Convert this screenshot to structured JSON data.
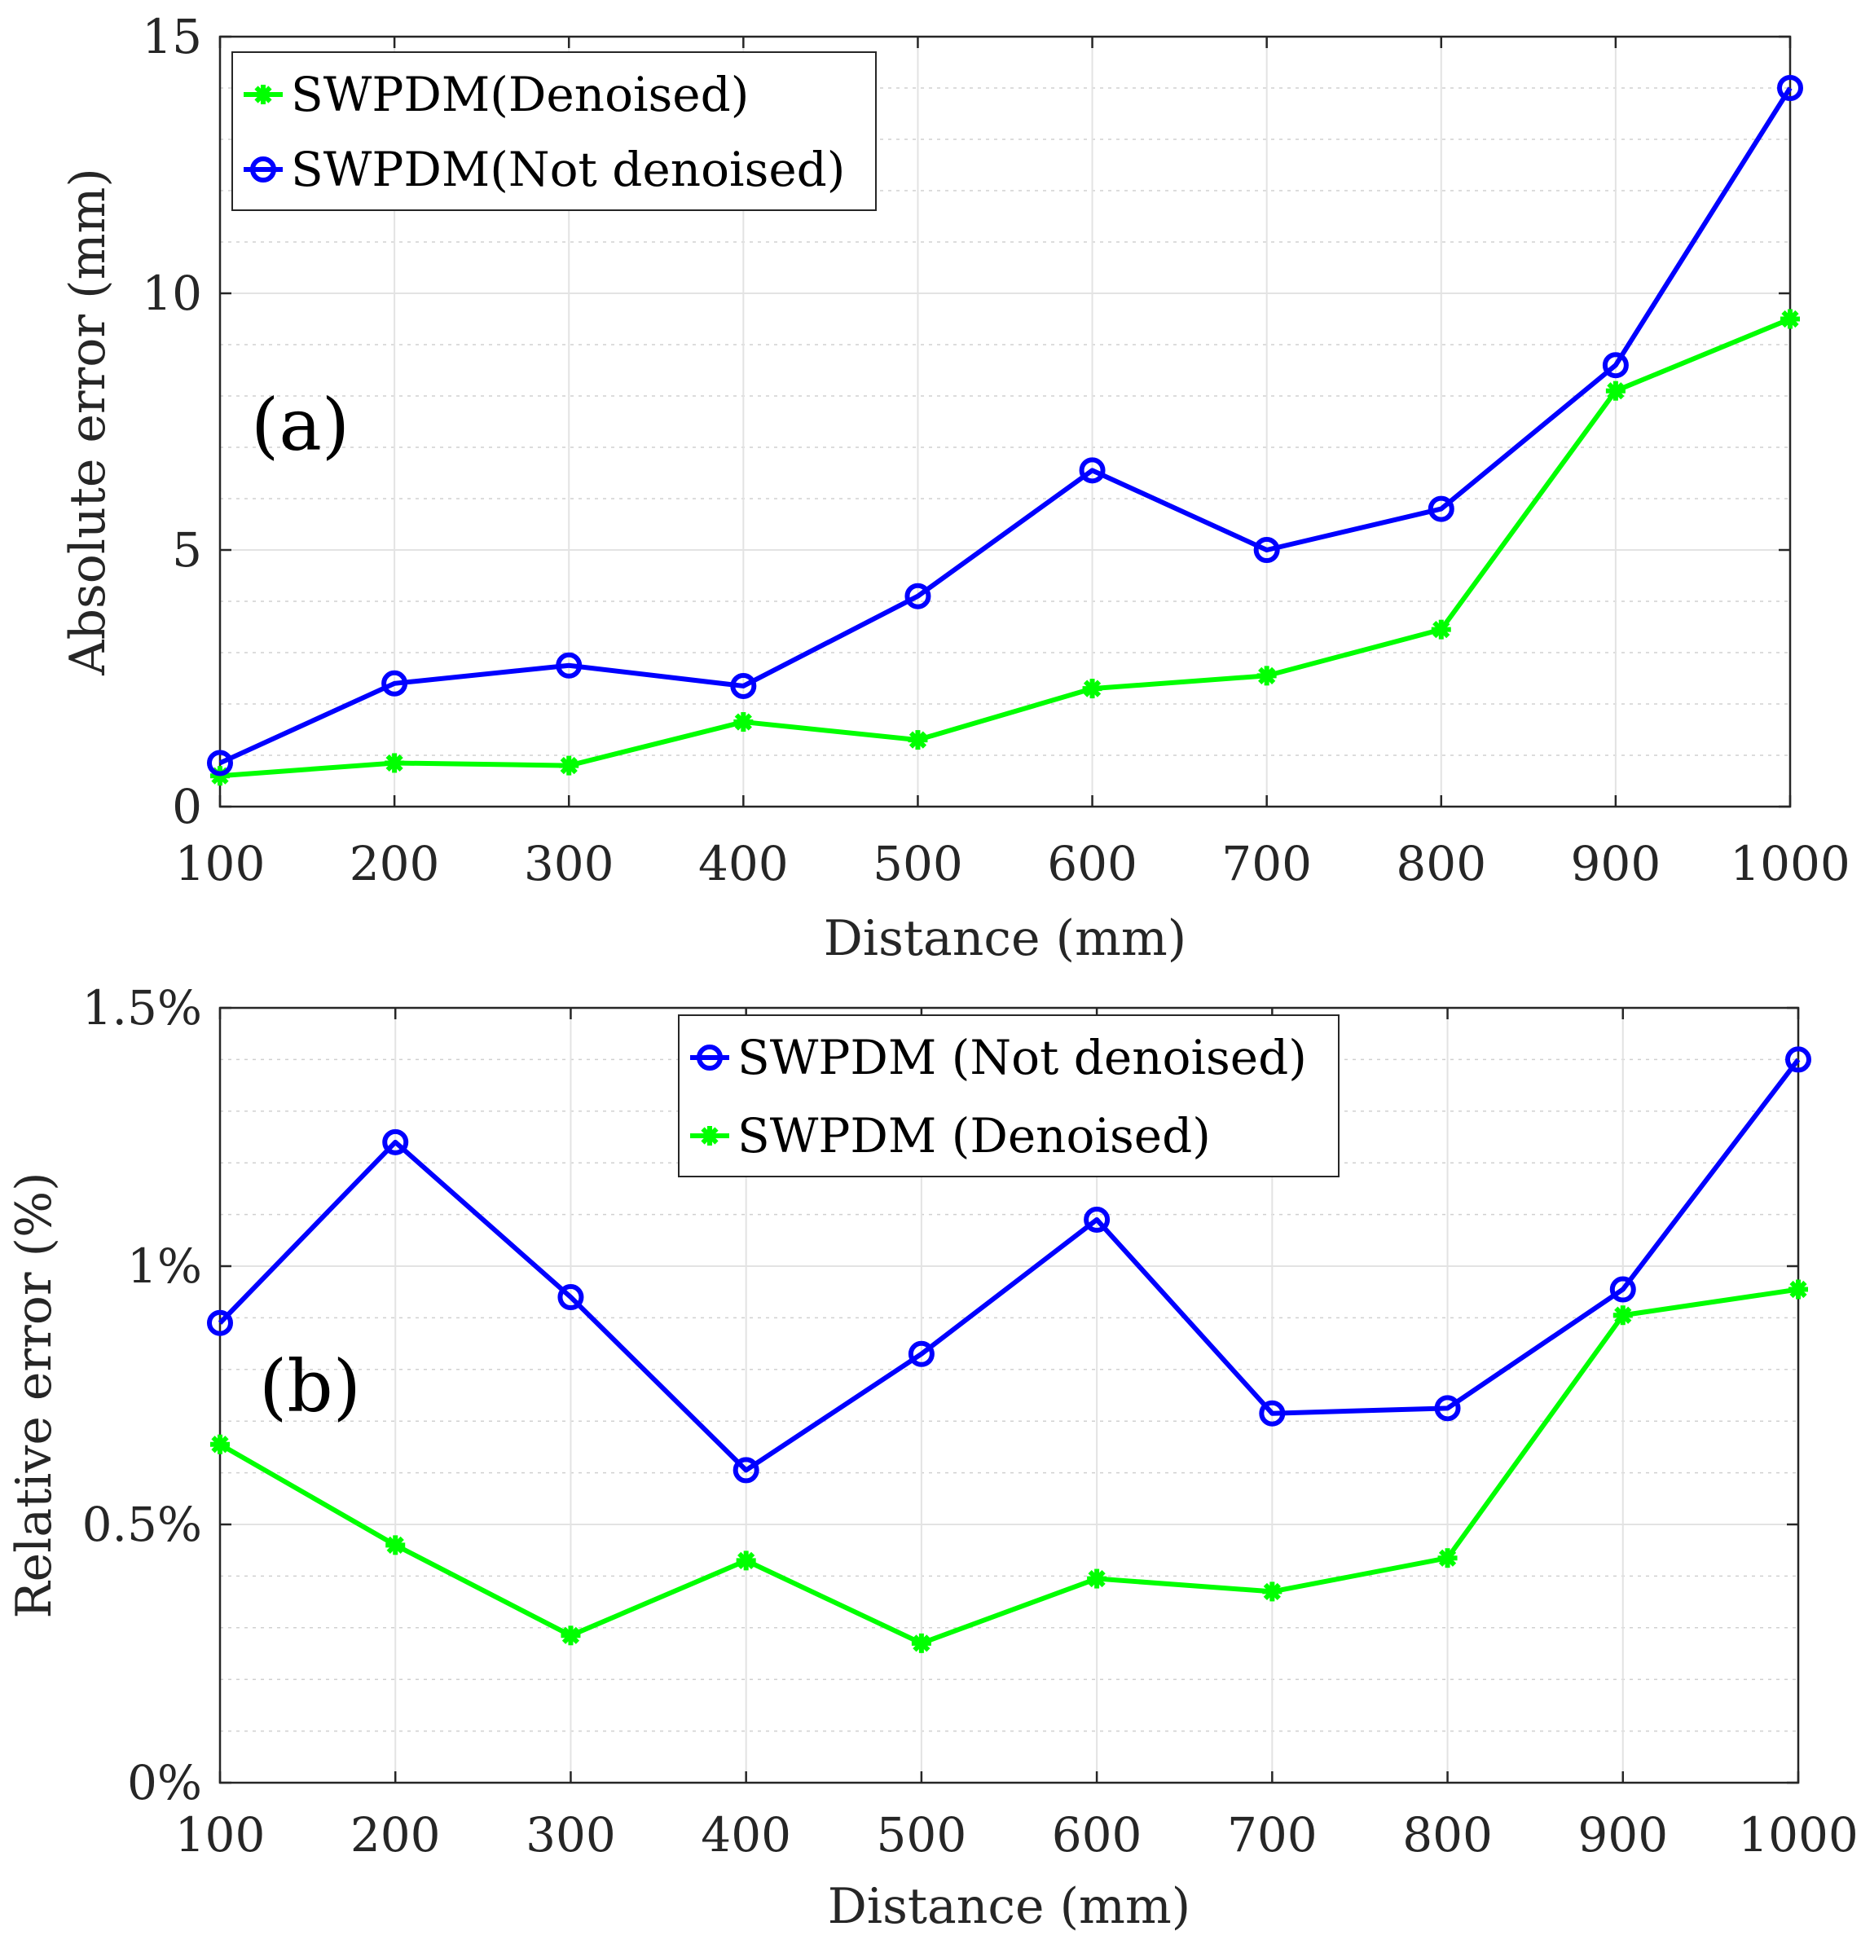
{
  "chart_data": [
    {
      "type": "line",
      "panel_label": "(a)",
      "xlabel": "Distance (mm)",
      "ylabel": "Absolute error (mm)",
      "x": [
        100,
        200,
        300,
        400,
        500,
        600,
        700,
        800,
        900,
        1000
      ],
      "xlim": [
        100,
        1000
      ],
      "ylim": [
        0,
        15
      ],
      "yticks": [
        0,
        5,
        10,
        15
      ],
      "ytick_labels": [
        "0",
        "5",
        "10",
        "15"
      ],
      "grid": true,
      "legend_position": "top-left",
      "legend_order": [
        "SWPDM(Denoised)",
        "SWPDM(Not denoised)"
      ],
      "series": [
        {
          "name": "SWPDM(Denoised)",
          "color": "#00ff00",
          "marker": "asterisk",
          "values": [
            0.6,
            0.85,
            0.8,
            1.65,
            1.3,
            2.3,
            2.55,
            3.45,
            8.1,
            9.5
          ]
        },
        {
          "name": "SWPDM(Not denoised)",
          "color": "#0000ff",
          "marker": "circle",
          "values": [
            0.85,
            2.4,
            2.75,
            2.35,
            4.1,
            6.55,
            5.0,
            5.8,
            8.6,
            14.0
          ]
        }
      ]
    },
    {
      "type": "line",
      "panel_label": "(b)",
      "xlabel": "Distance (mm)",
      "ylabel": "Relative error (%)",
      "x": [
        100,
        200,
        300,
        400,
        500,
        600,
        700,
        800,
        900,
        1000
      ],
      "xlim": [
        100,
        1000
      ],
      "ylim": [
        0,
        1.5
      ],
      "yticks": [
        0,
        0.5,
        1,
        1.5
      ],
      "ytick_labels": [
        "0%",
        "0.5%",
        "1%",
        "1.5%"
      ],
      "grid": true,
      "legend_position": "top-center",
      "legend_order": [
        "SWPDM (Not denoised)",
        "SWPDM (Denoised)"
      ],
      "series": [
        {
          "name": "SWPDM (Not denoised)",
          "color": "#0000ff",
          "marker": "circle",
          "values": [
            0.89,
            1.24,
            0.94,
            0.605,
            0.83,
            1.09,
            0.715,
            0.725,
            0.955,
            1.4
          ]
        },
        {
          "name": "SWPDM (Denoised)",
          "color": "#00ff00",
          "marker": "asterisk",
          "values": [
            0.655,
            0.46,
            0.285,
            0.43,
            0.27,
            0.395,
            0.37,
            0.435,
            0.905,
            0.955
          ]
        }
      ]
    }
  ]
}
